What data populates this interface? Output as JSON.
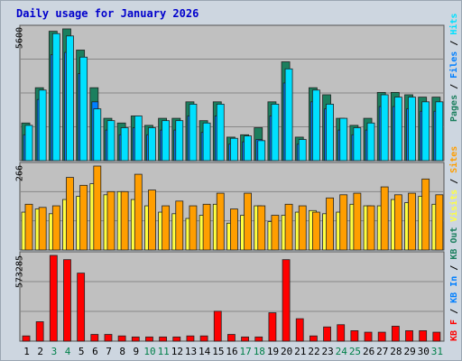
{
  "title": "Daily usage for January 2026",
  "colors": {
    "pages": "#1b7f5e",
    "files": "#007fff",
    "hits": "#00e0ff",
    "visits": "#ffff40",
    "sites": "#ff9e00",
    "kbf": "#ff0000",
    "weekend": "#00804a",
    "weekday": "#000000",
    "slash": "#000000"
  },
  "chart_data": [
    {
      "type": "bar",
      "panel": "hits-files-pages",
      "ylabel": "5600",
      "ylim": [
        0,
        5600
      ],
      "categories": [
        "1",
        "2",
        "3",
        "4",
        "5",
        "6",
        "7",
        "8",
        "9",
        "10",
        "11",
        "12",
        "13",
        "14",
        "15",
        "16",
        "17",
        "18",
        "19",
        "20",
        "21",
        "22",
        "23",
        "24",
        "25",
        "26",
        "27",
        "28",
        "29",
        "30",
        "31"
      ],
      "weekend_days": [
        "3",
        "4",
        "10",
        "11",
        "17",
        "18",
        "24",
        "25",
        "31"
      ],
      "legend": [
        "Pages",
        "Files",
        "Hits"
      ],
      "series": [
        {
          "name": "Pages",
          "color": "pages",
          "values": [
            1600,
            3100,
            5500,
            5600,
            4700,
            3100,
            1800,
            1600,
            1900,
            1500,
            1800,
            1800,
            2500,
            1700,
            2500,
            1000,
            1100,
            1400,
            2500,
            4200,
            1000,
            3100,
            2800,
            1800,
            1500,
            1800,
            2900,
            2900,
            2800,
            2700,
            2700
          ]
        },
        {
          "name": "Files",
          "color": "files",
          "values": [
            1100,
            2600,
            4500,
            4600,
            3700,
            2500,
            1300,
            1100,
            1400,
            1100,
            1300,
            1300,
            1900,
            1200,
            1900,
            700,
            800,
            900,
            1900,
            3300,
            700,
            2500,
            2200,
            1300,
            1100,
            1300,
            2300,
            2300,
            2200,
            2100,
            2100
          ]
        },
        {
          "name": "Hits",
          "color": "hits",
          "values": [
            1500,
            3000,
            5400,
            5300,
            4400,
            2200,
            1700,
            1400,
            1900,
            1400,
            1700,
            1700,
            2400,
            1600,
            2400,
            950,
            1050,
            850,
            2400,
            3900,
            900,
            3000,
            2400,
            1800,
            1400,
            1600,
            2800,
            2700,
            2700,
            2500,
            2500
          ]
        }
      ]
    },
    {
      "type": "bar",
      "panel": "sites-visits",
      "ylabel": "266",
      "ylim": [
        0,
        266
      ],
      "categories": [
        "1",
        "2",
        "3",
        "4",
        "5",
        "6",
        "7",
        "8",
        "9",
        "10",
        "11",
        "12",
        "13",
        "14",
        "15",
        "16",
        "17",
        "18",
        "19",
        "20",
        "21",
        "22",
        "23",
        "24",
        "25",
        "26",
        "27",
        "28",
        "29",
        "30",
        "31"
      ],
      "legend": [
        "Visits",
        "Sites"
      ],
      "series": [
        {
          "name": "Visits",
          "color": "visits",
          "values": [
            120,
            130,
            115,
            160,
            170,
            210,
            175,
            185,
            160,
            140,
            120,
            115,
            100,
            110,
            145,
            85,
            110,
            140,
            90,
            110,
            120,
            125,
            115,
            120,
            145,
            140,
            140,
            160,
            150,
            170,
            145
          ]
        },
        {
          "name": "Sites",
          "color": "sites",
          "values": [
            145,
            135,
            140,
            230,
            205,
            266,
            185,
            185,
            240,
            190,
            140,
            155,
            140,
            145,
            180,
            130,
            180,
            140,
            110,
            145,
            140,
            120,
            165,
            175,
            180,
            140,
            200,
            175,
            180,
            225,
            175
          ]
        }
      ]
    },
    {
      "type": "bar",
      "panel": "kbytes",
      "ylabel": "573285",
      "ylim": [
        0,
        573285
      ],
      "categories": [
        "1",
        "2",
        "3",
        "4",
        "5",
        "6",
        "7",
        "8",
        "9",
        "10",
        "11",
        "12",
        "13",
        "14",
        "15",
        "16",
        "17",
        "18",
        "19",
        "20",
        "21",
        "22",
        "23",
        "24",
        "25",
        "26",
        "27",
        "28",
        "29",
        "30",
        "31"
      ],
      "legend": [
        "KB F",
        "KB In",
        "KB Out"
      ],
      "series": [
        {
          "name": "KB F",
          "color": "kbf",
          "values": [
            35000,
            130000,
            573285,
            545000,
            455000,
            45000,
            45000,
            35000,
            28000,
            28000,
            28000,
            28000,
            35000,
            35000,
            200000,
            45000,
            28000,
            28000,
            190000,
            545000,
            150000,
            35000,
            95000,
            110000,
            70000,
            60000,
            60000,
            100000,
            70000,
            70000,
            60000
          ]
        }
      ]
    }
  ]
}
